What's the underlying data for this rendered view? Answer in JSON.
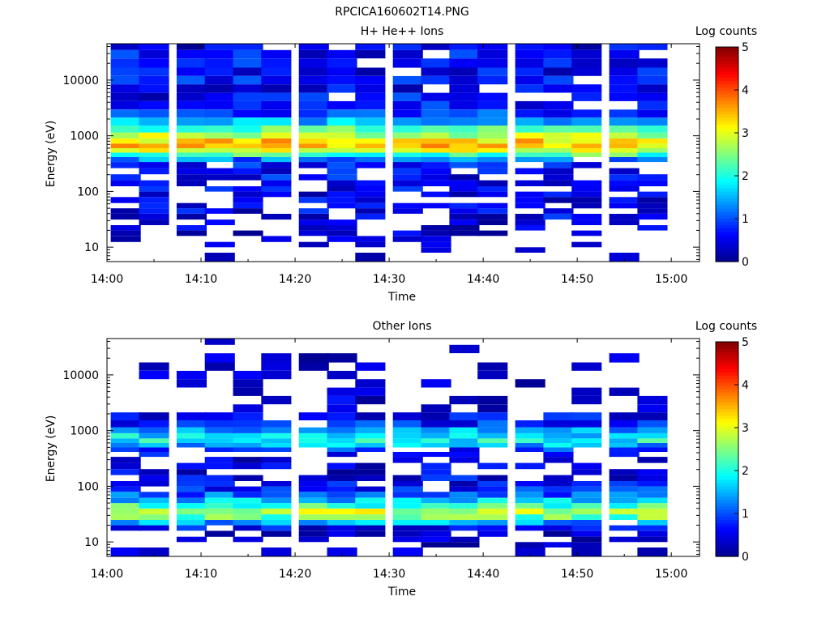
{
  "page_title": "RPCICA160602T14.PNG",
  "colors": {
    "colormap": [
      "#00008c",
      "#0000ff",
      "#0080ff",
      "#00ffff",
      "#80ff80",
      "#ffff00",
      "#ff8000",
      "#ff0000",
      "#800000"
    ],
    "axes": "#000000",
    "background": "#ffffff"
  },
  "chart_data": [
    {
      "type": "heatmap",
      "title": "H+ He++ Ions",
      "xlabel": "Time",
      "ylabel": "Energy (eV)",
      "x_ticks": [
        "14:00",
        "14:10",
        "14:20",
        "14:30",
        "14:40",
        "14:50",
        "15:00"
      ],
      "x_range": [
        "14:00",
        "15:03"
      ],
      "y_scale": "log",
      "y_ticks": [
        "10",
        "100",
        "1000",
        "10000"
      ],
      "y_range": [
        5.5,
        45000
      ],
      "colorbar": {
        "label": "Log counts",
        "ticks": [
          "0",
          "1",
          "2",
          "3",
          "4",
          "5"
        ],
        "range": [
          0,
          5
        ]
      },
      "grid": false,
      "time_bins": [
        "14:02",
        "14:05",
        "14:09",
        "14:12",
        "14:15",
        "14:18",
        "14:22",
        "14:25",
        "14:28",
        "14:32",
        "14:35",
        "14:38",
        "14:41",
        "14:45",
        "14:48",
        "14:51",
        "14:55",
        "14:58"
      ],
      "energy_bins_eV": [
        40000,
        30000,
        20000,
        14000,
        10000,
        7000,
        5000,
        3500,
        2500,
        1800,
        1300,
        1000,
        800,
        650,
        550,
        450,
        380,
        300,
        230,
        180,
        140,
        110,
        90,
        70,
        55,
        45,
        35,
        28,
        22,
        18,
        14,
        11,
        9,
        7
      ],
      "profile": {
        "note": "mean log counts per energy bin; cells vary around this level, blank where no counts",
        "log_counts": [
          0.5,
          0.6,
          0.7,
          0.6,
          0.7,
          0.6,
          0.6,
          0.7,
          0.9,
          1.5,
          2.2,
          2.8,
          3.3,
          3.4,
          3.0,
          2.2,
          1.2,
          0.8,
          0.6,
          0.6,
          0.6,
          0.5,
          0.5,
          0.5,
          0.5,
          0.5,
          0.5,
          0.4,
          0.3,
          0.3,
          0.2,
          0.2,
          0.1,
          0.1
        ],
        "fill_probability": [
          0.85,
          0.9,
          0.9,
          0.9,
          0.9,
          0.9,
          0.9,
          0.85,
          0.95,
          1,
          1,
          1,
          1,
          1,
          1,
          1,
          0.95,
          0.8,
          0.7,
          0.65,
          0.65,
          0.65,
          0.7,
          0.7,
          0.75,
          0.75,
          0.7,
          0.65,
          0.55,
          0.5,
          0.45,
          0.4,
          0.25,
          0.2
        ]
      }
    },
    {
      "type": "heatmap",
      "title": "Other Ions",
      "xlabel": "Time",
      "ylabel": "Energy (eV)",
      "x_ticks": [
        "14:00",
        "14:10",
        "14:20",
        "14:30",
        "14:40",
        "14:50",
        "15:00"
      ],
      "x_range": [
        "14:00",
        "15:03"
      ],
      "y_scale": "log",
      "y_ticks": [
        "10",
        "100",
        "1000",
        "10000"
      ],
      "y_range": [
        5.5,
        45000
      ],
      "colorbar": {
        "label": "Log counts",
        "ticks": [
          "0",
          "1",
          "2",
          "3",
          "4",
          "5"
        ],
        "range": [
          0,
          5
        ]
      },
      "grid": false,
      "time_bins": [
        "14:02",
        "14:05",
        "14:09",
        "14:12",
        "14:15",
        "14:18",
        "14:22",
        "14:25",
        "14:28",
        "14:32",
        "14:35",
        "14:38",
        "14:41",
        "14:45",
        "14:48",
        "14:51",
        "14:55",
        "14:58"
      ],
      "energy_bins_eV": [
        40000,
        30000,
        20000,
        14000,
        10000,
        7000,
        5000,
        3500,
        2500,
        1800,
        1300,
        1000,
        800,
        650,
        550,
        450,
        380,
        300,
        230,
        180,
        140,
        110,
        90,
        70,
        55,
        45,
        35,
        28,
        22,
        18,
        14,
        11,
        9,
        7
      ],
      "profile": {
        "note": "mean log counts per energy bin; cells vary around this level, blank where no counts",
        "log_counts": [
          0.2,
          0.2,
          0.2,
          0.2,
          0.2,
          0.2,
          0.2,
          0.3,
          0.3,
          0.6,
          0.8,
          1.4,
          1.8,
          1.9,
          1.5,
          0.8,
          0.5,
          0.4,
          0.4,
          0.4,
          0.5,
          0.6,
          0.8,
          1.1,
          1.6,
          2.2,
          2.8,
          2.4,
          1.4,
          0.6,
          0.3,
          0.2,
          0.2,
          0.2
        ],
        "fill_probability": [
          0.15,
          0.2,
          0.25,
          0.25,
          0.35,
          0.3,
          0.35,
          0.4,
          0.5,
          0.8,
          0.95,
          1,
          1,
          1,
          0.95,
          0.7,
          0.55,
          0.6,
          0.7,
          0.7,
          0.75,
          0.8,
          0.9,
          0.95,
          1,
          1,
          1,
          1,
          0.95,
          0.85,
          0.75,
          0.7,
          0.65,
          0.6
        ]
      }
    }
  ]
}
